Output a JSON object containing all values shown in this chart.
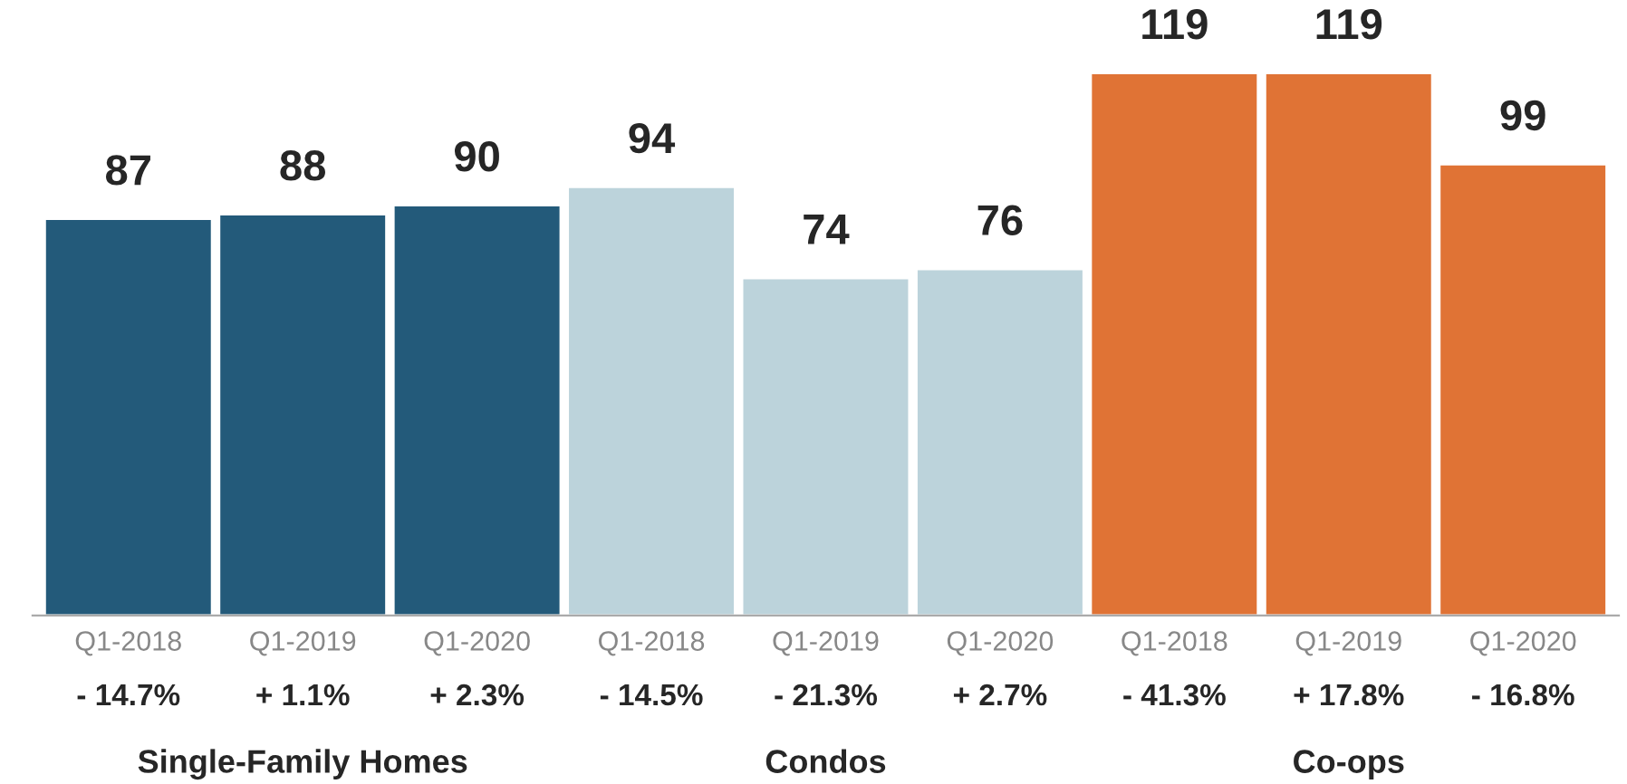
{
  "chart_data": {
    "type": "bar",
    "categories": [
      "Q1-2018",
      "Q1-2019",
      "Q1-2020",
      "Q1-2018",
      "Q1-2019",
      "Q1-2020",
      "Q1-2018",
      "Q1-2019",
      "Q1-2020"
    ],
    "series": [
      {
        "color": "#235a7a",
        "values": [
          87,
          88,
          90,
          null,
          null,
          null,
          null,
          null,
          null
        ]
      },
      {
        "color": "#bcd3db",
        "values": [
          null,
          null,
          null,
          94,
          74,
          76,
          null,
          null,
          null
        ]
      },
      {
        "color": "#e07335",
        "values": [
          null,
          null,
          null,
          null,
          null,
          null,
          119,
          119,
          99
        ]
      }
    ],
    "annotations": [
      "- 14.7%",
      "+ 1.1%",
      "+ 2.3%",
      "- 14.5%",
      "- 21.3%",
      "+ 2.7%",
      "- 41.3%",
      "+ 17.8%",
      "- 16.8%",
      "Single-Family Homes",
      "Condos",
      "Co-ops"
    ],
    "data_labels": true,
    "legend": false,
    "grid": false
  }
}
